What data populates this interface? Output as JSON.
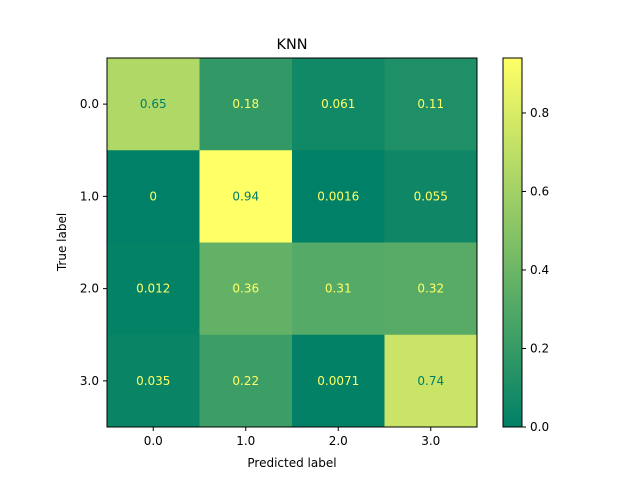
{
  "chart_data": {
    "type": "heatmap",
    "title": "KNN",
    "xlabel": "Predicted label",
    "ylabel": "True label",
    "x_categories": [
      "0.0",
      "1.0",
      "2.0",
      "3.0"
    ],
    "y_categories": [
      "0.0",
      "1.0",
      "2.0",
      "3.0"
    ],
    "values": [
      [
        0.65,
        0.18,
        0.061,
        0.11
      ],
      [
        0,
        0.94,
        0.0016,
        0.055
      ],
      [
        0.012,
        0.36,
        0.31,
        0.32
      ],
      [
        0.035,
        0.22,
        0.0071,
        0.74
      ]
    ],
    "value_labels": [
      [
        "0.65",
        "0.18",
        "0.061",
        "0.11"
      ],
      [
        "0",
        "0.94",
        "0.0016",
        "0.055"
      ],
      [
        "0.012",
        "0.36",
        "0.31",
        "0.32"
      ],
      [
        "0.035",
        "0.22",
        "0.0071",
        "0.74"
      ]
    ],
    "colormap": "summer",
    "vmin": 0,
    "vmax": 0.94,
    "colorbar": {
      "ticks": [
        0.0,
        0.2,
        0.4,
        0.6,
        0.8
      ],
      "tick_labels": [
        "0.0",
        "0.2",
        "0.4",
        "0.6",
        "0.8"
      ]
    },
    "colors": {
      "cmap_low": "#008066",
      "cmap_high": "#ffff66",
      "text_on_dark": "#ffff66",
      "text_on_light": "#008066"
    }
  }
}
